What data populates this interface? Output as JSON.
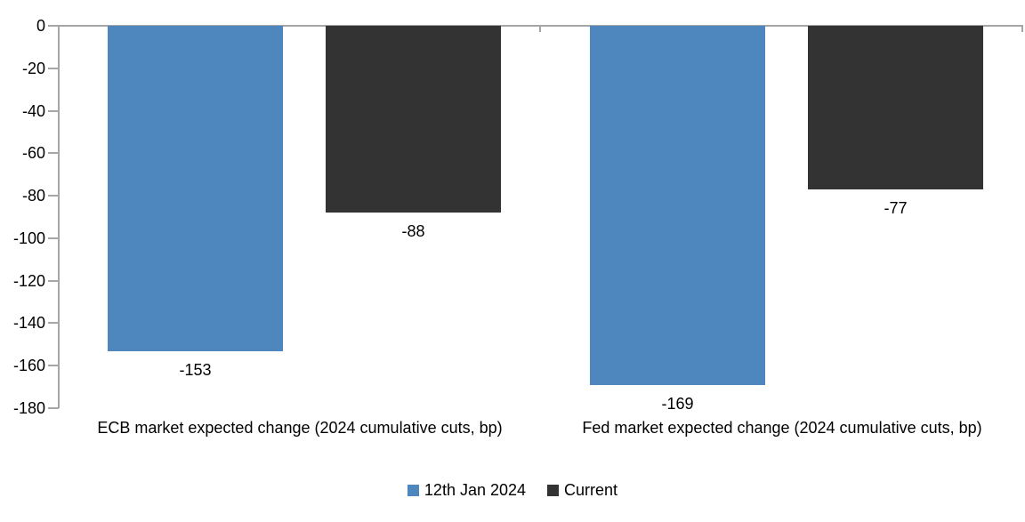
{
  "chart_data": {
    "type": "bar",
    "title": "",
    "xlabel": "",
    "ylabel": "",
    "categories": [
      "ECB market expected change (2024 cumulative cuts, bp)",
      "Fed market expected change (2024 cumulative cuts, bp)"
    ],
    "series": [
      {
        "name": "12th Jan 2024",
        "color": "#4E86BE",
        "values": [
          -153,
          -169
        ]
      },
      {
        "name": "Current",
        "color": "#333333",
        "values": [
          -88,
          -77
        ]
      }
    ],
    "y_axis": {
      "min": -180,
      "max": 0,
      "step": 20,
      "ticks": [
        0,
        -20,
        -40,
        -60,
        -80,
        -100,
        -120,
        -140,
        -160,
        -180
      ]
    },
    "ylim": [
      -180,
      0
    ],
    "grid": "off",
    "data_labels": "outside-end",
    "legend_position": "bottom",
    "colors": {
      "axis": "#A6A6A6",
      "text": "#000000",
      "background": "#FFFFFF"
    }
  }
}
